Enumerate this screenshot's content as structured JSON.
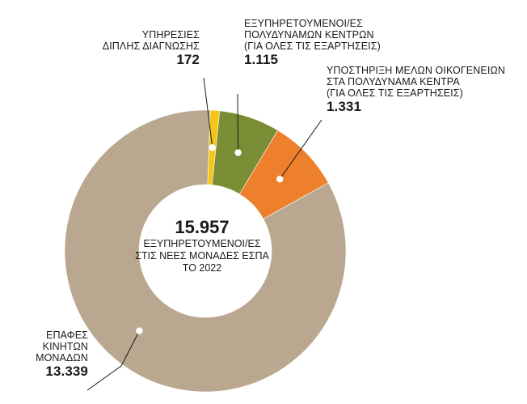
{
  "chart_data": {
    "type": "pie",
    "title": "",
    "center": {
      "total": "15.957",
      "lines": [
        "ΕΞΥΠΗΡΕΤΟΥΜΕΝΟΙ/ΕΣ",
        "ΣΤΙΣ ΝΕΕΣ ΜΟΝΑΔΕΣ ΕΣΠΑ",
        "ΤΟ 2022"
      ]
    },
    "slices": [
      {
        "label_lines": [
          "ΥΠΗΡΕΣΙΕΣ",
          "ΔΙΠΛΗΣ ΔΙΑΓΝΩΣΗΣ"
        ],
        "value": 172,
        "value_label": "172",
        "color": "#f5c518"
      },
      {
        "label_lines": [
          "ΕΞΥΠΗΡΕΤΟΥΜΕΝΟΙ/ΕΣ",
          "ΠΟΛΥΔΥΝΑΜΩΝ ΚΕΝΤΡΩΝ",
          "(ΓΙΑ ΟΛΕΣ ΤΙΣ ΕΞΑΡΤΗΣΕΙΣ)"
        ],
        "value": 1115,
        "value_label": "1.115",
        "color": "#7a8c34"
      },
      {
        "label_lines": [
          "ΥΠΟΣΤΗΡΙΞΗ ΜΕΛΩΝ ΟΙΚΟΓΕΝΕΙΩΝ",
          "ΣΤΑ ΠΟΛΥΔΥΝΑΜΑ ΚΕΝΤΡΑ",
          "(ΓΙΑ ΟΛΕΣ ΤΙΣ ΕΞΑΡΤΗΣΕΙΣ)"
        ],
        "value": 1331,
        "value_label": "1.331",
        "color": "#ee7f2d"
      },
      {
        "label_lines": [
          "ΕΠΑΦΕΣ",
          "ΚΙΝΗΤΩΝ",
          "ΜΟΝΑΔΩΝ"
        ],
        "value": 13339,
        "value_label": "13.339",
        "color": "#b9a88f"
      }
    ]
  }
}
